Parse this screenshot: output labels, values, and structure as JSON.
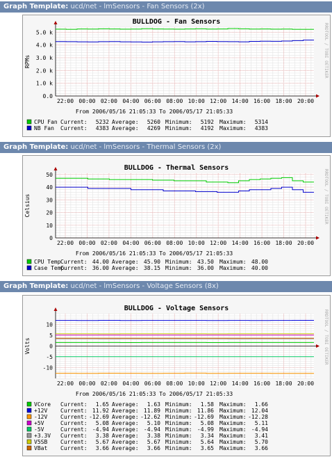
{
  "templates": [
    {
      "label": "Graph Template:",
      "value": "ucd/net - lmSensors - Fan Sensors (2x)"
    },
    {
      "label": "Graph Template:",
      "value": "ucd/net - lmSensors - Thermal Sensors (2x)"
    },
    {
      "label": "Graph Template:",
      "value": "ucd/net - lmSensors - Voltage Sensors (8x)"
    }
  ],
  "watermark": "RRDTOOL / TOBI OETIKER",
  "colors": {
    "header": "#6d88ad",
    "grid_major": "#f0b0b0",
    "grid_minor": "#e4e4e4",
    "axis_arrow": "#aa0000"
  },
  "chart_data": [
    {
      "type": "line",
      "title": "BULLDOG - Fan Sensors",
      "ylabel": "RPMs",
      "ylim": [
        0,
        5400
      ],
      "yticks": [
        0,
        1000,
        2000,
        3000,
        4000,
        5000
      ],
      "yticklabels": [
        "0.0",
        "1.0 k",
        "2.0 k",
        "3.0 k",
        "4.0 k",
        "5.0 k"
      ],
      "xticklabels": [
        "22:00",
        "00:00",
        "02:00",
        "04:00",
        "06:00",
        "08:00",
        "10:00",
        "12:00",
        "14:00",
        "16:00",
        "18:00",
        "20:00"
      ],
      "time_range": "From 2006/05/16 21:05:33 To 2006/05/17 21:05:33",
      "legend_headers": [
        "Current:",
        "Average:",
        "Minimum:",
        "Maximum:"
      ],
      "series": [
        {
          "name": "CPU Fan",
          "color": "#00cc00",
          "stats": [
            "5232",
            "5260",
            "5192",
            "5314"
          ],
          "values": [
            5240,
            5230,
            5260,
            5250,
            5270,
            5260,
            5240,
            5250,
            5280,
            5260,
            5250,
            5240,
            5260,
            5270,
            5250,
            5260,
            5290,
            5270,
            5250,
            5260,
            5240,
            5250,
            5230,
            5232
          ]
        },
        {
          "name": "NB Fan",
          "color": "#0000cc",
          "stats": [
            "4383",
            "4269",
            "4192",
            "4383"
          ],
          "values": [
            4270,
            4260,
            4250,
            4240,
            4260,
            4270,
            4250,
            4240,
            4230,
            4250,
            4260,
            4270,
            4250,
            4260,
            4280,
            4270,
            4260,
            4250,
            4280,
            4300,
            4290,
            4310,
            4340,
            4383
          ]
        }
      ]
    },
    {
      "type": "line",
      "title": "BULLDOG - Thermal Sensors",
      "ylabel": "Celsius",
      "ylim": [
        0,
        51
      ],
      "yticks": [
        0,
        10,
        20,
        30,
        40,
        50
      ],
      "yticklabels": [
        "0",
        "10",
        "20",
        "30",
        "40",
        "50"
      ],
      "xticklabels": [
        "22:00",
        "00:00",
        "02:00",
        "04:00",
        "06:00",
        "08:00",
        "10:00",
        "12:00",
        "14:00",
        "16:00",
        "18:00",
        "20:00"
      ],
      "time_range": "From 2006/05/16 21:05:33 To 2006/05/17 21:05:33",
      "legend_headers": [
        "Current:",
        "Average:",
        "Minimum:",
        "Maximum:"
      ],
      "series": [
        {
          "name": "CPU Temp",
          "color": "#00cc00",
          "stats": [
            "44.00",
            "45.90",
            "43.50",
            "48.00"
          ],
          "values": [
            47,
            47,
            47,
            46.5,
            46.5,
            46,
            46,
            46,
            46,
            45.5,
            45.5,
            45,
            45,
            45,
            44,
            44,
            43.5,
            45,
            46,
            46.5,
            47,
            47.5,
            45,
            44
          ]
        },
        {
          "name": "Case Temp",
          "color": "#0000cc",
          "stats": [
            "36.00",
            "38.15",
            "36.00",
            "40.00"
          ],
          "values": [
            40,
            40,
            40,
            39,
            39,
            39,
            39,
            38,
            38,
            38,
            37,
            37,
            37,
            36.5,
            36.5,
            36,
            36,
            37,
            38,
            38,
            39,
            40,
            38,
            36
          ]
        }
      ]
    },
    {
      "type": "line",
      "title": "BULLDOG - Voltage Sensors",
      "ylabel": "Volts",
      "ylim": [
        -15,
        15
      ],
      "yticks": [
        -10,
        -5,
        0,
        5,
        10
      ],
      "yticklabels": [
        "-10",
        "-5",
        "0",
        "5",
        "10"
      ],
      "xticklabels": [
        "22:00",
        "00:00",
        "02:00",
        "04:00",
        "06:00",
        "08:00",
        "10:00",
        "12:00",
        "14:00",
        "16:00",
        "18:00",
        "20:00"
      ],
      "time_range": "From 2006/05/16 21:05:33 To 2006/05/17 21:05:33",
      "legend_headers": [
        "Current:",
        "Average:",
        "Minimum:",
        "Maximum:"
      ],
      "series": [
        {
          "name": "VCore",
          "color": "#00cc00",
          "stats": [
            "1.65",
            "1.63",
            "1.58",
            "1.66"
          ],
          "values": [
            1.63,
            1.63,
            1.65,
            1.62,
            1.63,
            1.64,
            1.63,
            1.62,
            1.63,
            1.64,
            1.63,
            1.65
          ]
        },
        {
          "name": "+12V",
          "color": "#0000dd",
          "stats": [
            "11.92",
            "11.89",
            "11.86",
            "12.04"
          ],
          "values": [
            11.9,
            11.88,
            11.92,
            11.87,
            11.9,
            11.89,
            11.91,
            11.88,
            11.9,
            11.87,
            11.89,
            11.92
          ]
        },
        {
          "name": "-12V",
          "color": "#ff9900",
          "stats": [
            "-12.69",
            "-12.62",
            "-12.69",
            "-12.28"
          ],
          "values": [
            -12.6,
            -12.65,
            -12.58,
            -12.62,
            -12.68,
            -12.6,
            -12.55,
            -12.64,
            -12.6,
            -12.62,
            -12.66,
            -12.69
          ]
        },
        {
          "name": "+5V",
          "color": "#cc00cc",
          "stats": [
            "5.08",
            "5.10",
            "5.08",
            "5.11"
          ],
          "values": [
            5.1,
            5.1,
            5.09,
            5.1,
            5.11,
            5.1,
            5.1,
            5.09,
            5.1,
            5.1,
            5.1,
            5.08
          ]
        },
        {
          "name": "-5V",
          "color": "#00cc66",
          "stats": [
            "-4.94",
            "-4.94",
            "-4.99",
            "-4.94"
          ],
          "values": [
            -4.94,
            -4.94,
            -4.95,
            -4.94,
            -4.94,
            -4.94,
            -4.94,
            -4.95,
            -4.94,
            -4.94,
            -4.94,
            -4.94
          ]
        },
        {
          "name": "+3.3V",
          "color": "#999999",
          "stats": [
            "3.38",
            "3.38",
            "3.34",
            "3.41"
          ],
          "values": [
            3.38,
            3.38,
            3.37,
            3.38,
            3.39,
            3.38,
            3.38,
            3.38,
            3.37,
            3.38,
            3.38,
            3.38
          ]
        },
        {
          "name": "V5SB",
          "color": "#cccc00",
          "stats": [
            "5.67",
            "5.67",
            "5.64",
            "5.70"
          ],
          "values": [
            5.67,
            5.67,
            5.66,
            5.67,
            5.68,
            5.67,
            5.67,
            5.66,
            5.67,
            5.67,
            5.67,
            5.67
          ]
        },
        {
          "name": "VBat",
          "color": "#cc6600",
          "stats": [
            "3.66",
            "3.66",
            "3.65",
            "3.66"
          ],
          "values": [
            3.66,
            3.66,
            3.66,
            3.66,
            3.66,
            3.66,
            3.66,
            3.66,
            3.66,
            3.66,
            3.66,
            3.66
          ]
        }
      ]
    }
  ]
}
